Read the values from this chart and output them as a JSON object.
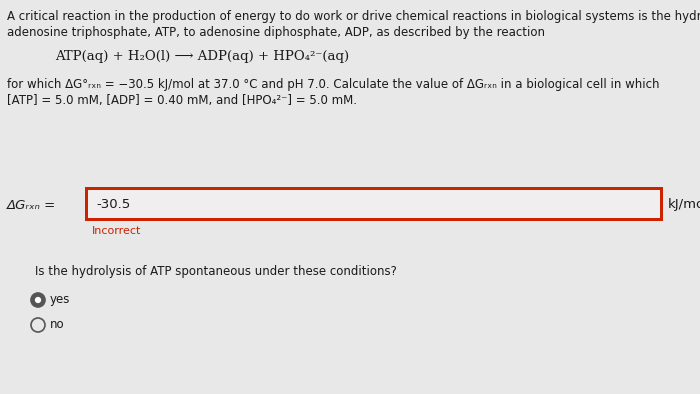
{
  "bg_color": "#e8e8e8",
  "text_color": "#1a1a1a",
  "title_line1": "A critical reaction in the production of energy to do work or drive chemical reactions in biological systems is the hydrolysis of",
  "title_line2": "adenosine triphosphate, ATP, to adenosine diphosphate, ADP, as described by the reaction",
  "reaction": "ATP(aq) + H₂O(l) ⟶ ADP(aq) + HPO₄²⁻(aq)",
  "condition_line1": "for which ΔG°ᵣₓₙ = −30.5 kJ/mol at 37.0 °C and pH 7.0. Calculate the value of ΔGᵣₓₙ in a biological cell in which",
  "condition_line2": "[ATP] = 5.0 mM, [ADP] = 0.40 mM, and [HPO₄²⁻] = 5.0 mM.",
  "label_delta_g": "ΔGᵣₓₙ =",
  "input_value": "-30.5",
  "unit": "kJ/mol",
  "incorrect_text": "Incorrect",
  "incorrect_color": "#cc2200",
  "question": "Is the hydrolysis of ATP spontaneous under these conditions?",
  "option_yes": "yes",
  "option_no": "no",
  "input_box_border_color": "#cc2200",
  "input_box_fill": "#f0eeee",
  "font_size_body": 8.5,
  "font_size_reaction": 9.5,
  "font_size_label": 9.5,
  "font_size_input": 9.5,
  "font_size_incorrect": 8.0,
  "font_size_question": 8.5,
  "font_size_options": 8.5
}
